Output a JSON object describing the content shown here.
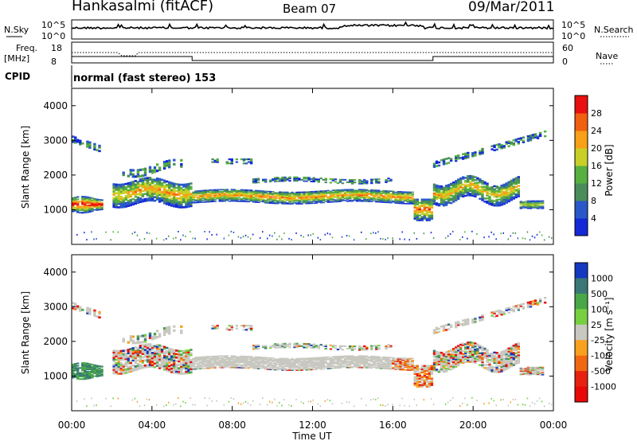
{
  "header": {
    "station": "Hankasalmi (fitACF)",
    "beam": "Beam 07",
    "date": "09/Mar/2011"
  },
  "noise_panel": {
    "left_label": "N.Sky",
    "right_label": "N.Search",
    "left_ticks": [
      "10^5",
      "10^0"
    ],
    "right_ticks": [
      "10^5",
      "10^0"
    ]
  },
  "freq_panel": {
    "left_label_1": "Freq.",
    "left_label_2": "[MHz]",
    "right_label": "Nave",
    "left_ticks": [
      "18",
      "8"
    ],
    "right_ticks": [
      "60",
      "0"
    ]
  },
  "cpid": {
    "label": "CPID",
    "text": "normal (fast stereo) 153"
  },
  "x_axis": {
    "label": "Time UT",
    "ticks": [
      "00:00",
      "04:00",
      "08:00",
      "12:00",
      "16:00",
      "20:00",
      "00:00"
    ]
  },
  "chart_data": [
    {
      "type": "heatmap",
      "title": "",
      "ylabel": "Slant Range [km]",
      "xlabel": "",
      "ylim": [
        0,
        4500
      ],
      "yticks": [
        "1000",
        "2000",
        "3000",
        "4000"
      ],
      "colorbar": {
        "label": "Power [dB]",
        "ticks": [
          "4",
          "8",
          "12",
          "16",
          "20",
          "24",
          "28"
        ],
        "colors": [
          "#1428d8",
          "#2a58c8",
          "#4a8c5a",
          "#58b040",
          "#c8d028",
          "#f8a018",
          "#f06010",
          "#e81010"
        ]
      }
    },
    {
      "type": "heatmap",
      "title": "",
      "ylabel": "Slant Range [km]",
      "xlabel": "Time UT",
      "ylim": [
        0,
        4500
      ],
      "yticks": [
        "1000",
        "2000",
        "3000",
        "4000"
      ],
      "colorbar": {
        "label": "Velocity [m s⁻¹]",
        "ticks": [
          "1000",
          "500",
          "100",
          "25",
          "-25",
          "-100",
          "-500",
          "-1000"
        ],
        "colors": [
          "#1438c0",
          "#3a7878",
          "#48a848",
          "#78d040",
          "#c8c8c0",
          "#f8a020",
          "#f06810",
          "#e82010",
          "#e80808"
        ]
      }
    }
  ],
  "colors": {
    "ground_scatter": "#c8c8c0",
    "frame": "#000000"
  }
}
